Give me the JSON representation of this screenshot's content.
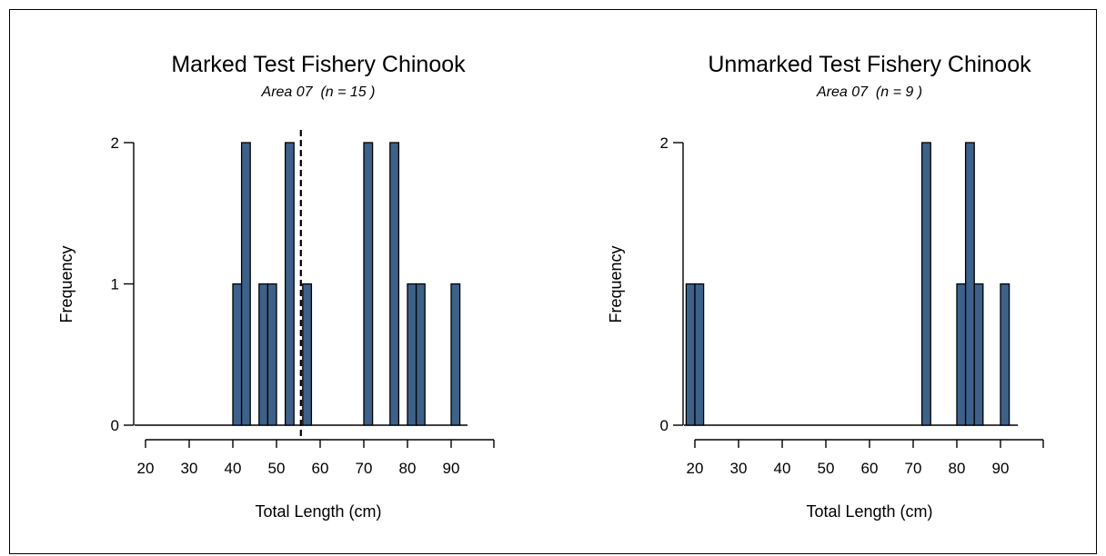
{
  "colors": {
    "bar_fill": "#3d6189",
    "bar_stroke": "#000000",
    "mean_line": "#000000"
  },
  "chart_data": [
    {
      "type": "bar",
      "title": "Marked Test Fishery Chinook",
      "subtitle": "Area 07  (n = 15 )",
      "xlabel": "Total Length (cm)",
      "ylabel": "Frequency",
      "xlim": [
        19,
        94
      ],
      "ylim": [
        0,
        2
      ],
      "x_ticks": [
        20,
        30,
        40,
        50,
        60,
        70,
        80,
        90
      ],
      "y_ticks": [
        0,
        1,
        2
      ],
      "bin_width": 2,
      "bins": [
        {
          "start": 40,
          "count": 1
        },
        {
          "start": 42,
          "count": 2
        },
        {
          "start": 46,
          "count": 1
        },
        {
          "start": 48,
          "count": 1
        },
        {
          "start": 52,
          "count": 2
        },
        {
          "start": 56,
          "count": 1
        },
        {
          "start": 70,
          "count": 2
        },
        {
          "start": 76,
          "count": 2
        },
        {
          "start": 80,
          "count": 1
        },
        {
          "start": 82,
          "count": 1
        },
        {
          "start": 90,
          "count": 1
        }
      ],
      "mean_line_x": 56
    },
    {
      "type": "bar",
      "title": "Unmarked Test Fishery Chinook",
      "subtitle": "Area 07  (n = 9 )",
      "xlabel": "Total Length (cm)",
      "ylabel": "Frequency",
      "xlim": [
        18,
        94
      ],
      "ylim": [
        0,
        2
      ],
      "x_ticks": [
        20,
        30,
        40,
        50,
        60,
        70,
        80,
        90
      ],
      "y_ticks": [
        0,
        2
      ],
      "bin_width": 2,
      "bins": [
        {
          "start": 18,
          "count": 1
        },
        {
          "start": 20,
          "count": 1
        },
        {
          "start": 72,
          "count": 2
        },
        {
          "start": 80,
          "count": 1
        },
        {
          "start": 82,
          "count": 2
        },
        {
          "start": 84,
          "count": 1
        },
        {
          "start": 90,
          "count": 1
        }
      ]
    }
  ]
}
